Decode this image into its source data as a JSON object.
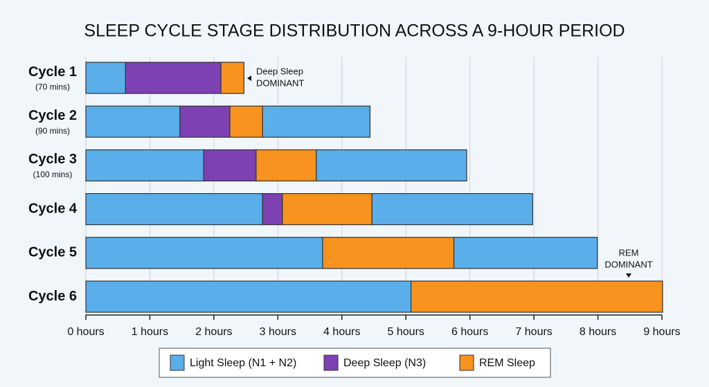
{
  "chart_data": {
    "type": "bar",
    "orientation": "horizontal",
    "stacked": true,
    "title": "SLEEP CYCLE STAGE DISTRIBUTION ACROSS A 9-HOUR PERIOD",
    "categories": [
      "Cycle 1",
      "Cycle 2",
      "Cycle 3",
      "Cycle 4",
      "Cycle 5",
      "Cycle 6"
    ],
    "category_notes": [
      "(70 mins)",
      "(90 mins)",
      "(100 mins)",
      null,
      null,
      null
    ],
    "series": [
      {
        "name": "Light Sleep (N1 + N2)",
        "color": "#5aaeea"
      },
      {
        "name": "Deep Sleep (N3)",
        "color": "#7d41b3"
      },
      {
        "name": "REM Sleep",
        "color": "#f7931e"
      }
    ],
    "bars": [
      [
        {
          "stage": 0,
          "value": 0.62
        },
        {
          "stage": 1,
          "value": 1.49
        },
        {
          "stage": 2,
          "value": 0.36
        }
      ],
      [
        {
          "stage": 0,
          "value": 1.47
        },
        {
          "stage": 1,
          "value": 0.78
        },
        {
          "stage": 2,
          "value": 0.51
        },
        {
          "stage": 0,
          "value": 1.68
        }
      ],
      [
        {
          "stage": 0,
          "value": 1.84
        },
        {
          "stage": 1,
          "value": 0.82
        },
        {
          "stage": 2,
          "value": 0.94
        },
        {
          "stage": 0,
          "value": 2.35
        }
      ],
      [
        {
          "stage": 0,
          "value": 2.76
        },
        {
          "stage": 1,
          "value": 0.31
        },
        {
          "stage": 2,
          "value": 1.4
        },
        {
          "stage": 0,
          "value": 2.51
        }
      ],
      [
        {
          "stage": 0,
          "value": 3.7
        },
        {
          "stage": 2,
          "value": 2.05
        },
        {
          "stage": 0,
          "value": 2.24
        }
      ],
      [
        {
          "stage": 0,
          "value": 5.08
        },
        {
          "stage": 2,
          "value": 3.93
        }
      ]
    ],
    "xlim": [
      0,
      9
    ],
    "xticks": [
      {
        "value": 0,
        "label": "0 hours"
      },
      {
        "value": 1,
        "label": "1 hours"
      },
      {
        "value": 2,
        "label": "2 hours"
      },
      {
        "value": 3,
        "label": "3 hours"
      },
      {
        "value": 4,
        "label": "4 hours"
      },
      {
        "value": 5,
        "label": "5 hours"
      },
      {
        "value": 6,
        "label": "6 hours"
      },
      {
        "value": 7,
        "label": "7 hours"
      },
      {
        "value": 8,
        "label": "8 hours"
      },
      {
        "value": 9,
        "label": "9 hours"
      }
    ],
    "grid": true,
    "legend": "bottom",
    "annotations": [
      {
        "lines": [
          "Deep Sleep",
          "DOMINANT"
        ]
      },
      {
        "lines": [
          "REM",
          "DOMINANT"
        ]
      }
    ]
  }
}
